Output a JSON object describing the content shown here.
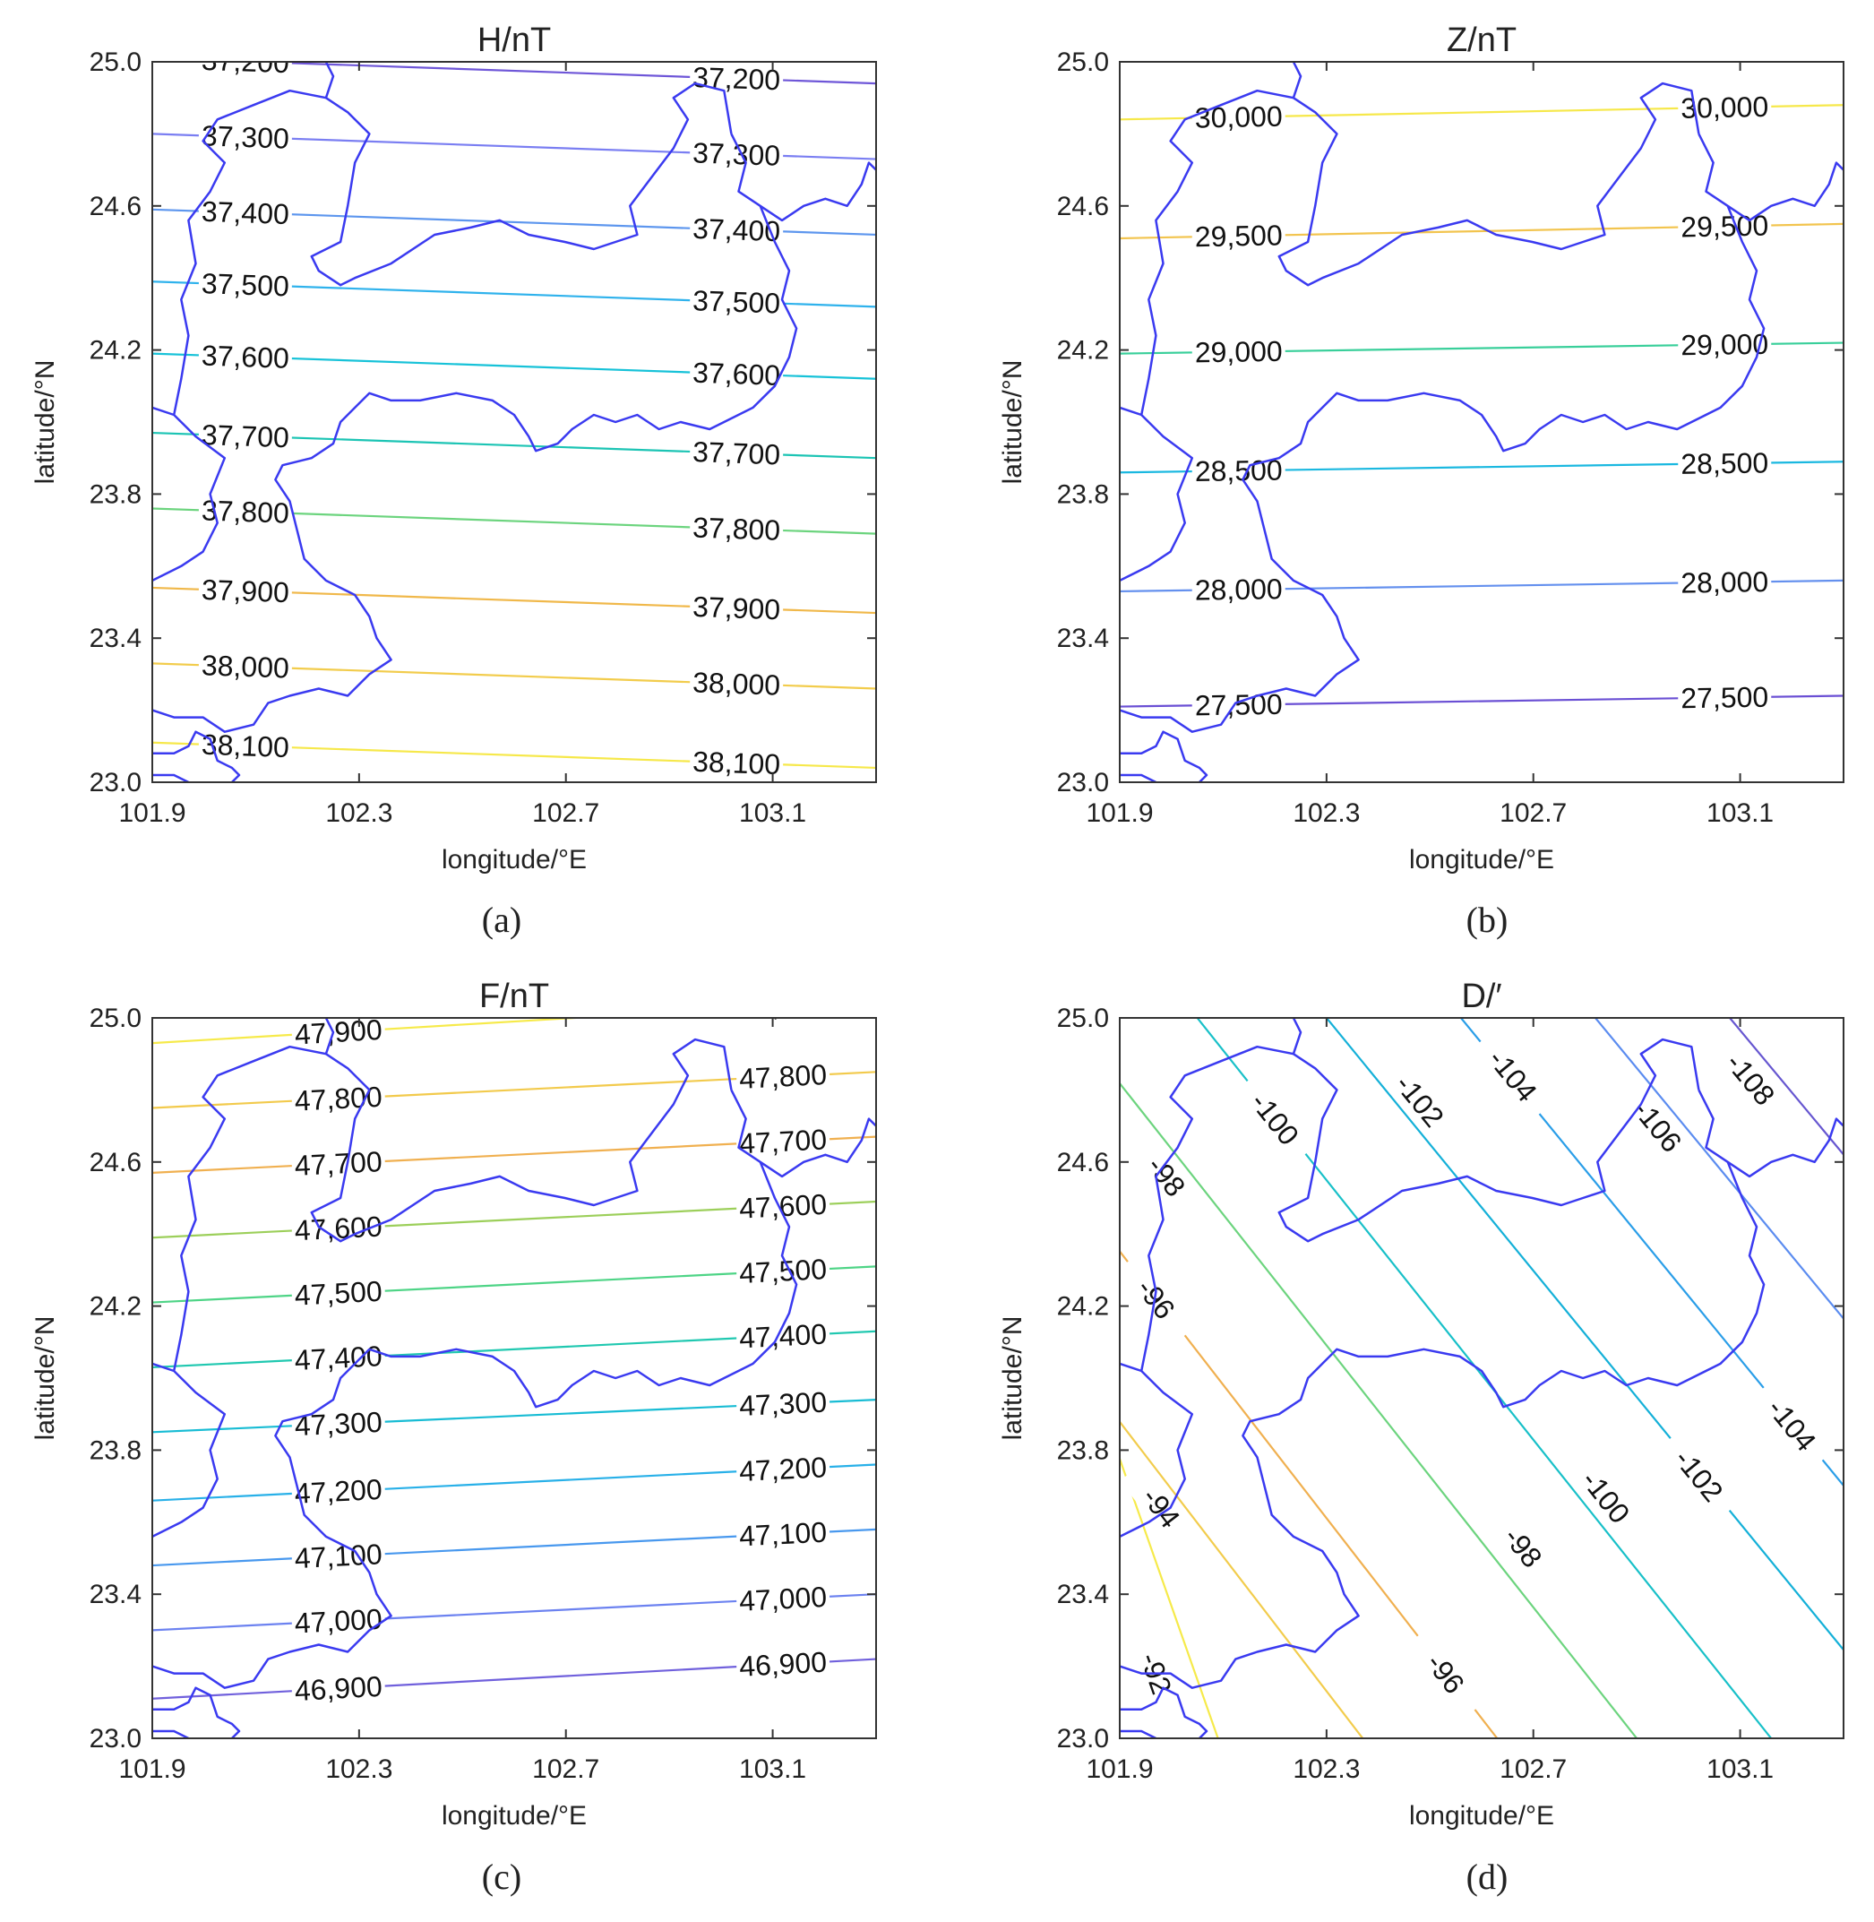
{
  "figure": {
    "caption_labels": [
      "(a)",
      "(b)",
      "(c)",
      "(d)"
    ]
  },
  "chart_data": [
    {
      "type": "contour",
      "title": "H/nT",
      "xlabel": "longitude/°E",
      "ylabel": "latitude/°N",
      "xlim": [
        101.9,
        103.3
      ],
      "ylim": [
        23.0,
        25.0
      ],
      "xticks": [
        "101.9",
        "102.3",
        "102.7",
        "103.1"
      ],
      "yticks": [
        "23.0",
        "23.4",
        "23.8",
        "24.2",
        "24.6",
        "25.0"
      ],
      "levels": [
        {
          "value": 37200,
          "label": "37,200",
          "y_west": 25.01,
          "y_east": 24.94,
          "color": "#6e56d8"
        },
        {
          "value": 37300,
          "label": "37,300",
          "y_west": 24.8,
          "y_east": 24.73,
          "color": "#7a7ef2"
        },
        {
          "value": 37400,
          "label": "37,400",
          "y_west": 24.59,
          "y_east": 24.52,
          "color": "#5d96ee"
        },
        {
          "value": 37500,
          "label": "37,500",
          "y_west": 24.39,
          "y_east": 24.32,
          "color": "#2fb2ec"
        },
        {
          "value": 37600,
          "label": "37,600",
          "y_west": 24.19,
          "y_east": 24.12,
          "color": "#17c2d8"
        },
        {
          "value": 37700,
          "label": "37,700",
          "y_west": 23.97,
          "y_east": 23.9,
          "color": "#1cc4b4"
        },
        {
          "value": 37800,
          "label": "37,800",
          "y_west": 23.76,
          "y_east": 23.69,
          "color": "#6cd47e"
        },
        {
          "value": 37900,
          "label": "37,900",
          "y_west": 23.54,
          "y_east": 23.47,
          "color": "#f0b84a"
        },
        {
          "value": 38000,
          "label": "38,000",
          "y_west": 23.33,
          "y_east": 23.26,
          "color": "#f2cc4c"
        },
        {
          "value": 38100,
          "label": "38,100",
          "y_west": 23.11,
          "y_east": 23.04,
          "color": "#f6e84a"
        }
      ],
      "label_lon": [
        102.08,
        103.03
      ]
    },
    {
      "type": "contour",
      "title": "Z/nT",
      "xlabel": "longitude/°E",
      "ylabel": "latitude/°N",
      "xlim": [
        101.9,
        103.3
      ],
      "ylim": [
        23.0,
        25.0
      ],
      "xticks": [
        "101.9",
        "102.3",
        "102.7",
        "103.1"
      ],
      "yticks": [
        "23.0",
        "23.4",
        "23.8",
        "24.2",
        "24.6",
        "25.0"
      ],
      "levels": [
        {
          "value": 30000,
          "label": "30,000",
          "y_west": 24.84,
          "y_east": 24.88,
          "color": "#f6e84a"
        },
        {
          "value": 29500,
          "label": "29,500",
          "y_west": 24.51,
          "y_east": 24.55,
          "color": "#f2c44e"
        },
        {
          "value": 29000,
          "label": "29,000",
          "y_west": 24.19,
          "y_east": 24.22,
          "color": "#39cf9a"
        },
        {
          "value": 28500,
          "label": "28,500",
          "y_west": 23.86,
          "y_east": 23.89,
          "color": "#1ab8e0"
        },
        {
          "value": 28000,
          "label": "28,000",
          "y_west": 23.53,
          "y_east": 23.56,
          "color": "#6490ee"
        },
        {
          "value": 27500,
          "label": "27,500",
          "y_west": 23.21,
          "y_east": 23.24,
          "color": "#6a4fd4"
        }
      ],
      "label_lon": [
        102.13,
        103.07
      ]
    },
    {
      "type": "contour",
      "title": "F/nT",
      "xlabel": "longitude/°E",
      "ylabel": "latitude/°N",
      "xlim": [
        101.9,
        103.3
      ],
      "ylim": [
        23.0,
        25.0
      ],
      "xticks": [
        "101.9",
        "102.3",
        "102.7",
        "103.1"
      ],
      "yticks": [
        "23.0",
        "23.4",
        "23.8",
        "24.2",
        "24.6",
        "25.0"
      ],
      "levels": [
        {
          "value": 47900,
          "label": "47,900",
          "y_west": 24.93,
          "y_east": 25.05,
          "color": "#f6ea4a"
        },
        {
          "value": 47800,
          "label": "47,800",
          "y_west": 24.75,
          "y_east": 24.85,
          "color": "#f2ca4c"
        },
        {
          "value": 47700,
          "label": "47,700",
          "y_west": 24.57,
          "y_east": 24.67,
          "color": "#f0b050"
        },
        {
          "value": 47600,
          "label": "47,600",
          "y_west": 24.39,
          "y_east": 24.49,
          "color": "#9ccf5a"
        },
        {
          "value": 47500,
          "label": "47,500",
          "y_west": 24.21,
          "y_east": 24.31,
          "color": "#4ed486"
        },
        {
          "value": 47400,
          "label": "47,400",
          "y_west": 24.03,
          "y_east": 24.13,
          "color": "#20c8b0"
        },
        {
          "value": 47300,
          "label": "47,300",
          "y_west": 23.85,
          "y_east": 23.94,
          "color": "#18bcd4"
        },
        {
          "value": 47200,
          "label": "47,200",
          "y_west": 23.66,
          "y_east": 23.76,
          "color": "#28b0e8"
        },
        {
          "value": 47100,
          "label": "47,100",
          "y_west": 23.48,
          "y_east": 23.58,
          "color": "#4898ee"
        },
        {
          "value": 47000,
          "label": "47,000",
          "y_west": 23.3,
          "y_east": 23.4,
          "color": "#6c82f0"
        },
        {
          "value": 46900,
          "label": "46,900",
          "y_west": 23.11,
          "y_east": 23.22,
          "color": "#7060dc"
        }
      ],
      "label_lon": [
        102.26,
        103.12
      ]
    },
    {
      "type": "contour",
      "title": "D/′",
      "xlabel": "longitude/°E",
      "ylabel": "latitude/°N",
      "xlim": [
        101.9,
        103.3
      ],
      "ylim": [
        23.0,
        25.0
      ],
      "xticks": [
        "101.9",
        "102.3",
        "102.7",
        "103.1"
      ],
      "yticks": [
        "23.0",
        "23.4",
        "23.8",
        "24.2",
        "24.6",
        "25.0"
      ],
      "levels": [
        {
          "value": -92,
          "label": "-92",
          "x_top": 101.6,
          "x_bottom": 102.09,
          "color": "#f6ea4a",
          "labels": [
            [
              101.97,
              23.18
            ]
          ]
        },
        {
          "value": -94,
          "label": "-94",
          "x_top": 101.3,
          "x_bottom": 102.37,
          "color": "#f2cc4c",
          "labels": [
            [
              101.98,
              23.64
            ]
          ]
        },
        {
          "value": -96,
          "label": "-96",
          "x_top": 101.55,
          "x_bottom": 102.63,
          "color": "#f0b050",
          "labels": [
            [
              101.97,
              24.22
            ],
            [
              102.53,
              23.18
            ]
          ]
        },
        {
          "value": -98,
          "label": "-98",
          "x_top": 101.8,
          "x_bottom": 102.9,
          "color": "#6cd47e",
          "labels": [
            [
              101.99,
              24.56
            ],
            [
              102.68,
              23.53
            ]
          ]
        },
        {
          "value": -100,
          "label": "-100",
          "x_top": 102.05,
          "x_bottom": 103.16,
          "color": "#18c0c8",
          "labels": [
            [
              102.2,
              24.72
            ],
            [
              102.84,
              23.67
            ]
          ]
        },
        {
          "value": -102,
          "label": "-102",
          "x_top": 102.3,
          "x_bottom": 103.44,
          "color": "#14b0d8",
          "labels": [
            [
              102.48,
              24.77
            ],
            [
              103.02,
              23.73
            ]
          ]
        },
        {
          "value": -104,
          "label": "-104",
          "x_top": 102.56,
          "x_bottom": 103.7,
          "color": "#2a9ee8",
          "labels": [
            [
              102.66,
              24.84
            ],
            [
              103.2,
              23.87
            ]
          ]
        },
        {
          "value": -106,
          "label": "-106",
          "x_top": 102.82,
          "x_bottom": 103.97,
          "color": "#5b8cf0",
          "labels": [
            [
              102.94,
              24.7
            ]
          ]
        },
        {
          "value": -108,
          "label": "-108",
          "x_top": 103.08,
          "x_bottom": 104.24,
          "color": "#6656d0",
          "labels": [
            [
              103.12,
              24.83
            ]
          ]
        }
      ]
    }
  ]
}
